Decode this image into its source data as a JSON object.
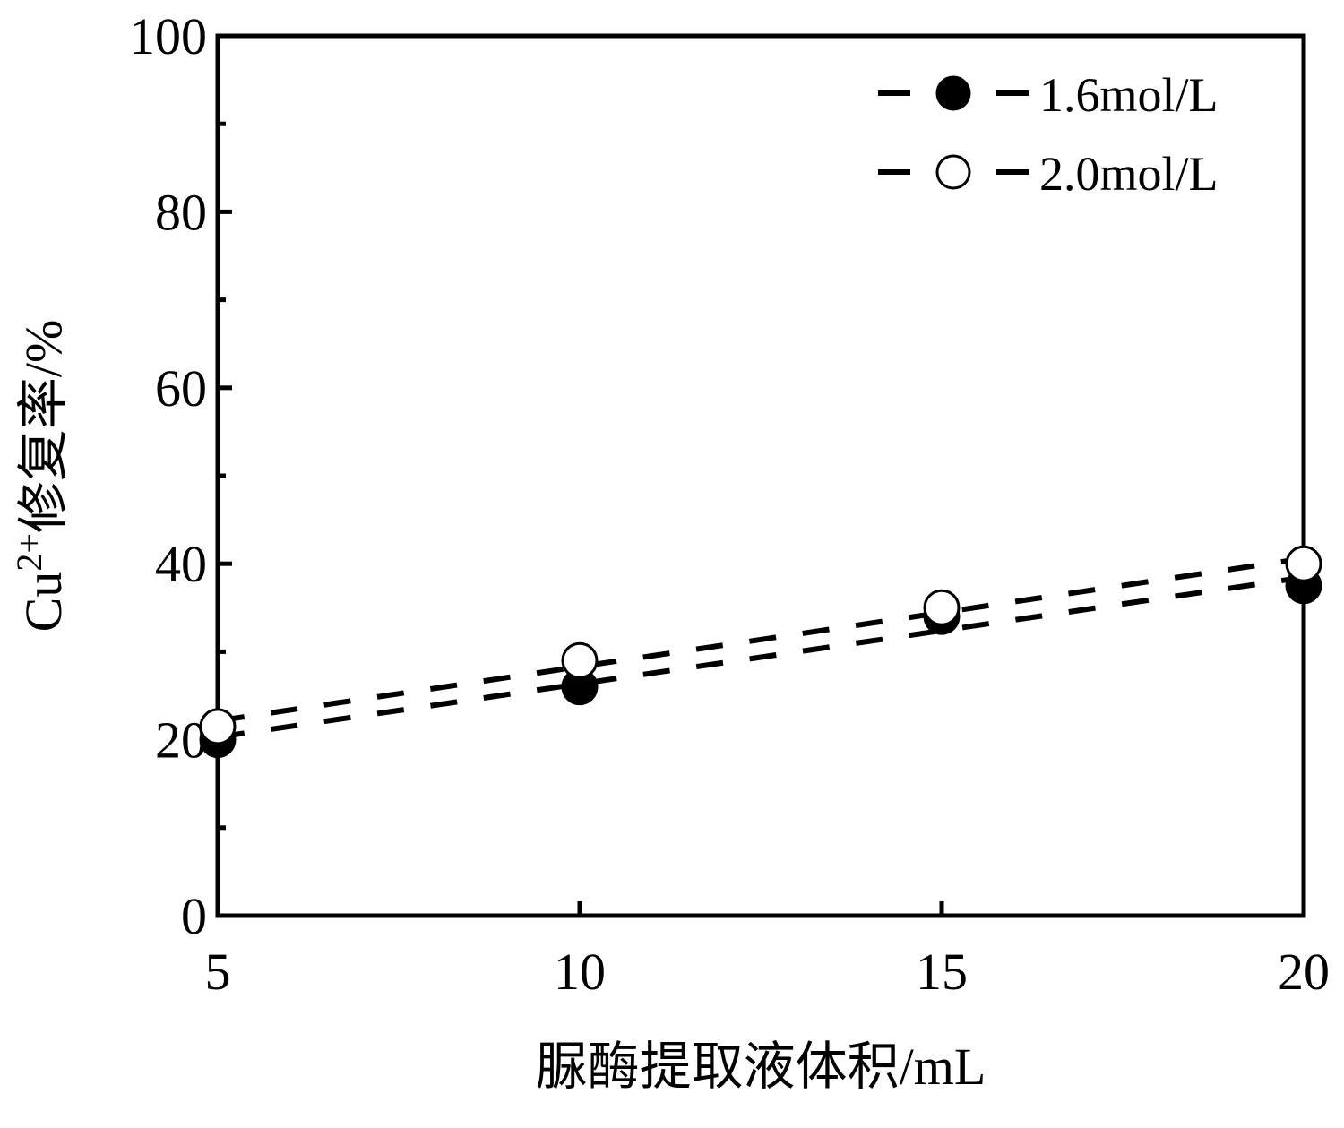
{
  "chart_data": {
    "type": "scatter",
    "title": "",
    "xlabel": "脲酶提取液体积/mL",
    "ylabel_main": "Cu",
    "ylabel_sup": "2+",
    "ylabel_rest": "修复率/%",
    "xlim": [
      5,
      20
    ],
    "ylim": [
      0,
      100
    ],
    "xticks": [
      5,
      10,
      15,
      20
    ],
    "yticks": [
      0,
      20,
      40,
      60,
      80,
      100
    ],
    "grid": false,
    "legend_position": "top-right",
    "series": [
      {
        "name": "1.6mol/L",
        "marker": "filled-circle",
        "color": "#000000",
        "x": [
          5,
          10,
          15,
          20
        ],
        "y": [
          20,
          26,
          34,
          37.5
        ]
      },
      {
        "name": "2.0mol/L",
        "marker": "open-circle",
        "color": "#000000",
        "x": [
          5,
          10,
          15,
          20
        ],
        "y": [
          21.5,
          29,
          35,
          40
        ]
      }
    ]
  }
}
